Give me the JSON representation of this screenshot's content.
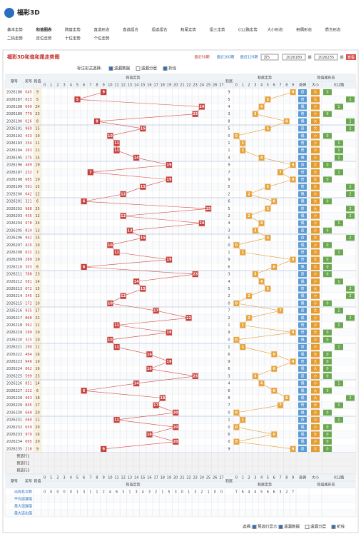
{
  "header": {
    "logo": "福彩3D",
    "nav": [
      "基本走势",
      "和值图表",
      "跨度走势",
      "直选形态",
      "直选组合",
      "组选组合",
      "和尾走势",
      "组三走势",
      "012路走势",
      "大小形态",
      "奇偶形态",
      "质合形态",
      "二码走势",
      "百位走势",
      "十位走势",
      "个位走势"
    ],
    "nav_active": 1
  },
  "panel": {
    "title": "福彩3D和值和尾走势图",
    "links": [
      "最近50期",
      "最近100期",
      "最近120期"
    ],
    "select": "近5",
    "from": "2026180",
    "to": "2026235",
    "unit": "期",
    "button": "查看",
    "mark_label": "标注形式选择:",
    "options": [
      {
        "label": "遗漏数据",
        "checked": true
      },
      {
        "label": "遗漏分层",
        "checked": false
      },
      {
        "label": "折线",
        "checked": true
      }
    ]
  },
  "table": {
    "columns": {
      "issue": "期号",
      "number": "奖号",
      "sum": "和值",
      "sum_trend": "和值走势",
      "tail": "和尾",
      "tail_trend": "和尾走势",
      "attr": "和值尾形态",
      "parity": "奇偶",
      "size": "大小",
      "road": "012路"
    },
    "sum_scale": [
      0,
      1,
      2,
      3,
      4,
      5,
      6,
      7,
      8,
      9,
      10,
      11,
      12,
      13,
      14,
      15,
      16,
      17,
      18,
      19,
      20,
      21,
      22,
      23,
      24,
      25,
      26,
      27
    ],
    "tail_scale": [
      0,
      1,
      2,
      3,
      4,
      5,
      6,
      7,
      8,
      9
    ],
    "rows": [
      [
        "2026186",
        "045",
        9,
        9,
        "奇",
        "大",
        0
      ],
      [
        "2026187",
        "023",
        5,
        5,
        "奇",
        "大",
        2
      ],
      [
        "2026188",
        "699",
        24,
        4,
        "偶",
        "小",
        1
      ],
      [
        "2026189",
        "779",
        23,
        3,
        "奇",
        "小",
        0
      ],
      [
        "2026190",
        "026",
        8,
        8,
        "偶",
        "大",
        2
      ],
      [
        "2026191",
        "960",
        15,
        5,
        "奇",
        "大",
        2
      ],
      [
        "2026192",
        "433",
        10,
        0,
        "偶",
        "小",
        0
      ],
      [
        "2026193",
        "254",
        11,
        1,
        "奇",
        "小",
        1
      ],
      [
        "2026194",
        "263",
        11,
        1,
        "奇",
        "小",
        1
      ],
      [
        "2026195",
        "275",
        14,
        4,
        "偶",
        "小",
        1
      ],
      [
        "2026196",
        "469",
        19,
        9,
        "奇",
        "大",
        0
      ],
      [
        "2026197",
        "232",
        7,
        7,
        "奇",
        "大",
        1
      ],
      [
        "2026198",
        "685",
        19,
        9,
        "奇",
        "大",
        0
      ],
      [
        "2026199",
        "591",
        15,
        5,
        "奇",
        "大",
        2
      ],
      [
        "2026200",
        "642",
        12,
        2,
        "偶",
        "小",
        2
      ],
      [
        "2026201",
        "321",
        6,
        6,
        "偶",
        "大",
        0
      ],
      [
        "2026202",
        "988",
        25,
        5,
        "奇",
        "大",
        2
      ],
      [
        "2026203",
        "435",
        12,
        2,
        "偶",
        "小",
        2
      ],
      [
        "2026204",
        "978",
        24,
        4,
        "偶",
        "小",
        1
      ],
      [
        "2026205",
        "814",
        13,
        3,
        "奇",
        "小",
        0
      ],
      [
        "2026206",
        "942",
        15,
        5,
        "奇",
        "大",
        2
      ],
      [
        "2026207",
        "415",
        10,
        0,
        "偶",
        "小",
        0
      ],
      [
        "2026208",
        "632",
        11,
        1,
        "奇",
        "小",
        1
      ],
      [
        "2026209",
        "289",
        19,
        9,
        "奇",
        "大",
        0
      ],
      [
        "2026210",
        "303",
        6,
        6,
        "偶",
        "大",
        0
      ],
      [
        "2026211",
        "788",
        23,
        3,
        "奇",
        "小",
        0
      ],
      [
        "2026212",
        "581",
        14,
        4,
        "偶",
        "小",
        1
      ],
      [
        "2026213",
        "672",
        15,
        5,
        "奇",
        "大",
        2
      ],
      [
        "2026214",
        "345",
        12,
        2,
        "偶",
        "小",
        2
      ],
      [
        "2026215",
        "172",
        10,
        0,
        "偶",
        "小",
        0
      ],
      [
        "2026216",
        "935",
        17,
        7,
        "奇",
        "大",
        1
      ],
      [
        "2026217",
        "868",
        22,
        2,
        "偶",
        "小",
        2
      ],
      [
        "2026218",
        "362",
        11,
        1,
        "奇",
        "小",
        1
      ],
      [
        "2026219",
        "199",
        19,
        9,
        "奇",
        "大",
        0
      ],
      [
        "2026220",
        "325",
        10,
        0,
        "偶",
        "小",
        0
      ],
      [
        "2026221",
        "290",
        11,
        1,
        "奇",
        "小",
        1
      ],
      [
        "2026222",
        "484",
        16,
        6,
        "偶",
        "大",
        0
      ],
      [
        "2026223",
        "946",
        19,
        9,
        "奇",
        "大",
        0
      ],
      [
        "2026224",
        "862",
        16,
        6,
        "偶",
        "大",
        0
      ],
      [
        "2026225",
        "599",
        23,
        3,
        "奇",
        "小",
        0
      ],
      [
        "2026226",
        "851",
        14,
        4,
        "偶",
        "小",
        1
      ],
      [
        "2026227",
        "222",
        6,
        6,
        "偶",
        "大",
        0
      ],
      [
        "2026228",
        "963",
        18,
        8,
        "偶",
        "大",
        2
      ],
      [
        "2026229",
        "845",
        17,
        7,
        "奇",
        "大",
        1
      ],
      [
        "2026230",
        "668",
        20,
        0,
        "偶",
        "小",
        0
      ],
      [
        "2026231",
        "560",
        11,
        1,
        "奇",
        "小",
        1
      ],
      [
        "2026232",
        "659",
        20,
        0,
        "偶",
        "小",
        0
      ],
      [
        "2026233",
        "970",
        16,
        6,
        "偶",
        "大",
        0
      ],
      [
        "2026234",
        "695",
        20,
        0,
        "偶",
        "小",
        0
      ],
      [
        "2026235",
        "216",
        9,
        9,
        "奇",
        "大",
        0
      ]
    ],
    "predict": [
      "预选行1",
      "预选行2",
      "预选行3"
    ],
    "stats": {
      "labels": [
        "出现总次数",
        "平均遗漏值",
        "最大遗漏值",
        "最大连出值"
      ],
      "sum_counts": [
        0,
        0,
        0,
        0,
        0,
        1,
        3,
        1,
        1,
        2,
        4,
        6,
        3,
        1,
        3,
        4,
        3,
        2,
        1,
        5,
        3,
        0,
        1,
        3,
        2,
        1,
        0,
        0
      ],
      "tail_counts": [
        7,
        6,
        4,
        4,
        5,
        6,
        6,
        3,
        2,
        7
      ]
    }
  },
  "footer": {
    "label": "选择:",
    "options": [
      {
        "label": "预选行显示",
        "checked": true
      },
      {
        "label": "遗漏数据",
        "checked": true
      },
      {
        "label": "遗漏分层",
        "checked": false
      },
      {
        "label": "折线",
        "checked": true
      }
    ]
  }
}
